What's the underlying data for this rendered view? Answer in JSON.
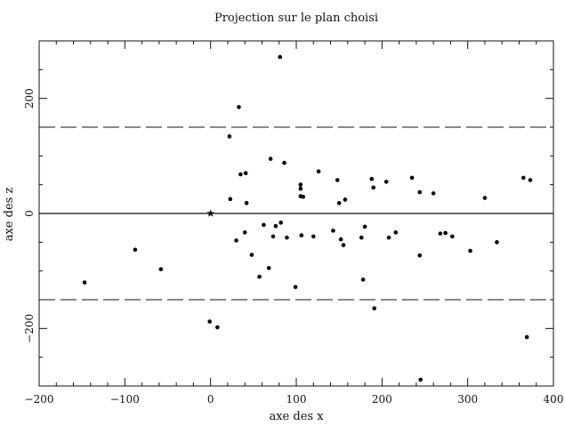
{
  "chart_data": {
    "type": "scatter",
    "title": "Projection sur le plan choisi",
    "xlabel": "axe des x",
    "ylabel": "axe des z",
    "xlim": [
      -200,
      400
    ],
    "ylim": [
      -300,
      300
    ],
    "xticks": [
      -200,
      -100,
      0,
      100,
      200,
      300,
      400
    ],
    "yticks": [
      -200,
      0,
      200
    ],
    "xtick_labels": [
      "−200",
      "−100",
      "0",
      "100",
      "200",
      "300",
      "400"
    ],
    "ytick_labels": [
      "−200",
      "0",
      "200"
    ],
    "grid": false,
    "reference_lines": [
      {
        "style": "solid",
        "y": 0
      },
      {
        "style": "dashed",
        "y": 150
      },
      {
        "style": "dashed",
        "y": -150
      }
    ],
    "origin_marker": {
      "x": 0,
      "y": 0,
      "symbol": "star"
    },
    "points": [
      {
        "x": -147,
        "y": -120
      },
      {
        "x": -88,
        "y": -63
      },
      {
        "x": -58,
        "y": -97
      },
      {
        "x": -1,
        "y": -188
      },
      {
        "x": 8,
        "y": -198
      },
      {
        "x": 22,
        "y": 134
      },
      {
        "x": 23,
        "y": 25
      },
      {
        "x": 30,
        "y": -47
      },
      {
        "x": 33,
        "y": 185
      },
      {
        "x": 35,
        "y": 68
      },
      {
        "x": 40,
        "y": -33
      },
      {
        "x": 41,
        "y": 70
      },
      {
        "x": 42,
        "y": 18
      },
      {
        "x": 48,
        "y": -72
      },
      {
        "x": 57,
        "y": -110
      },
      {
        "x": 62,
        "y": -20
      },
      {
        "x": 68,
        "y": -95
      },
      {
        "x": 70,
        "y": 95
      },
      {
        "x": 73,
        "y": -40
      },
      {
        "x": 76,
        "y": -22
      },
      {
        "x": 81,
        "y": 272
      },
      {
        "x": 82,
        "y": -16
      },
      {
        "x": 86,
        "y": 88
      },
      {
        "x": 89,
        "y": -42
      },
      {
        "x": 99,
        "y": -128
      },
      {
        "x": 105,
        "y": 50
      },
      {
        "x": 105,
        "y": 43
      },
      {
        "x": 105,
        "y": 30
      },
      {
        "x": 106,
        "y": -38
      },
      {
        "x": 108,
        "y": 29
      },
      {
        "x": 120,
        "y": -40
      },
      {
        "x": 126,
        "y": 73
      },
      {
        "x": 143,
        "y": -30
      },
      {
        "x": 148,
        "y": 58
      },
      {
        "x": 150,
        "y": 18
      },
      {
        "x": 152,
        "y": -45
      },
      {
        "x": 155,
        "y": -55
      },
      {
        "x": 157,
        "y": 24
      },
      {
        "x": 176,
        "y": -42
      },
      {
        "x": 178,
        "y": -115
      },
      {
        "x": 180,
        "y": -23
      },
      {
        "x": 188,
        "y": 60
      },
      {
        "x": 190,
        "y": 45
      },
      {
        "x": 191,
        "y": -165
      },
      {
        "x": 205,
        "y": 55
      },
      {
        "x": 208,
        "y": -42
      },
      {
        "x": 216,
        "y": -33
      },
      {
        "x": 235,
        "y": 62
      },
      {
        "x": 244,
        "y": -73
      },
      {
        "x": 244,
        "y": 37
      },
      {
        "x": 245,
        "y": -289
      },
      {
        "x": 260,
        "y": 35
      },
      {
        "x": 268,
        "y": -35
      },
      {
        "x": 274,
        "y": -34
      },
      {
        "x": 282,
        "y": -40
      },
      {
        "x": 303,
        "y": -65
      },
      {
        "x": 320,
        "y": 27
      },
      {
        "x": 334,
        "y": -50
      },
      {
        "x": 365,
        "y": 62
      },
      {
        "x": 369,
        "y": -215
      },
      {
        "x": 373,
        "y": 58
      }
    ]
  }
}
